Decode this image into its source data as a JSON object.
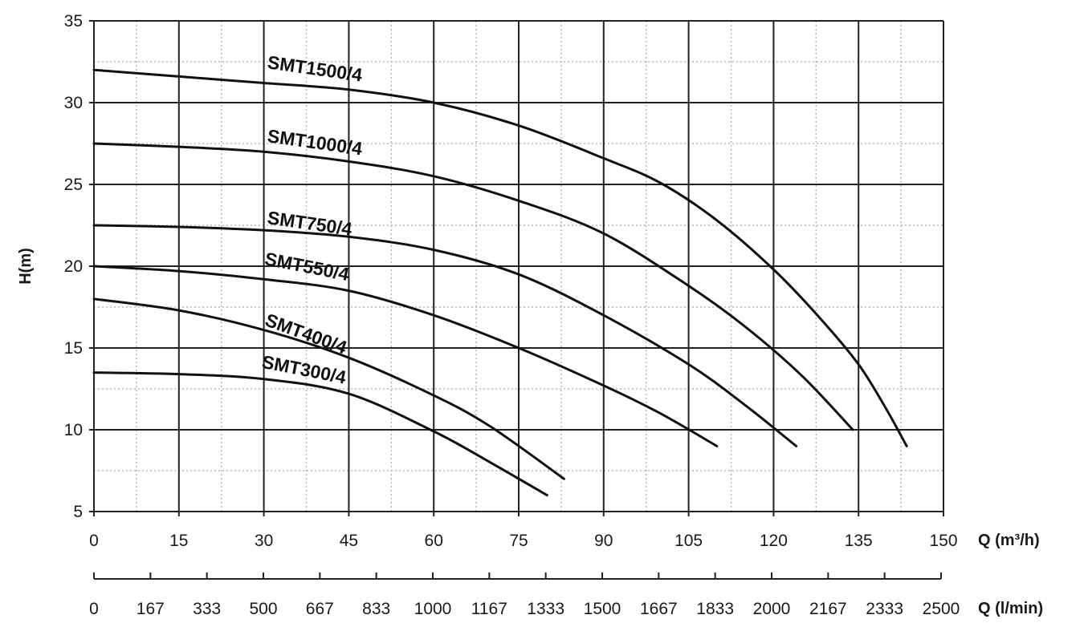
{
  "chart_data": {
    "type": "line",
    "title": "",
    "xlabel": "Q (m³/h)",
    "xlabel_secondary": "Q (l/min)",
    "ylabel": "H(m)",
    "xlim": [
      0,
      150
    ],
    "ylim": [
      5,
      35
    ],
    "x_ticks": [
      "0",
      "15",
      "30",
      "45",
      "60",
      "75",
      "90",
      "105",
      "120",
      "135",
      "150"
    ],
    "x_ticks_secondary": [
      "0",
      "167",
      "333",
      "500",
      "667",
      "833",
      "1000",
      "1167",
      "1333",
      "1500",
      "1667",
      "1833",
      "2000",
      "2167",
      "2333",
      "2500"
    ],
    "y_ticks": [
      "5",
      "10",
      "15",
      "20",
      "25",
      "30",
      "35"
    ],
    "grid": true,
    "series": [
      {
        "name": "SMT1500/4",
        "x": [
          0,
          15,
          30,
          45,
          60,
          75,
          90,
          100,
          110,
          120,
          128,
          135,
          140,
          143.5
        ],
        "y": [
          32,
          31.6,
          31.2,
          30.8,
          30.0,
          28.6,
          26.6,
          25.1,
          22.8,
          19.8,
          16.9,
          14.0,
          11.2,
          9.0
        ]
      },
      {
        "name": "SMT1000/4",
        "x": [
          0,
          15,
          30,
          45,
          60,
          75,
          90,
          105,
          115,
          125,
          134
        ],
        "y": [
          27.5,
          27.3,
          27.0,
          26.4,
          25.5,
          24.0,
          22.0,
          18.8,
          16.3,
          13.3,
          10.0
        ]
      },
      {
        "name": "SMT750/4",
        "x": [
          0,
          15,
          30,
          45,
          60,
          75,
          90,
          105,
          115,
          124
        ],
        "y": [
          22.5,
          22.4,
          22.2,
          21.8,
          21.0,
          19.5,
          17.0,
          14.0,
          11.5,
          9.0
        ]
      },
      {
        "name": "SMT550/4",
        "x": [
          0,
          15,
          30,
          45,
          60,
          75,
          90,
          100,
          110
        ],
        "y": [
          20,
          19.7,
          19.2,
          18.5,
          17.0,
          15.0,
          12.7,
          11.0,
          9.0
        ]
      },
      {
        "name": "SMT400/4",
        "x": [
          0,
          15,
          30,
          45,
          60,
          70,
          83
        ],
        "y": [
          18,
          17.3,
          16.1,
          14.4,
          12.1,
          10.2,
          7.0
        ]
      },
      {
        "name": "SMT300/4",
        "x": [
          0,
          15,
          30,
          45,
          60,
          70,
          80
        ],
        "y": [
          13.5,
          13.4,
          13.1,
          12.2,
          9.9,
          8.0,
          6.0
        ]
      }
    ],
    "labels": [
      {
        "text": "SMT1500/4",
        "x": 30.5,
        "y": 32.1,
        "angle": 8
      },
      {
        "text": "SMT1000/4",
        "x": 30.5,
        "y": 27.6,
        "angle": 8
      },
      {
        "text": "SMT750/4",
        "x": 30.5,
        "y": 22.6,
        "angle": 8
      },
      {
        "text": "SMT550/4",
        "x": 30.0,
        "y": 20.1,
        "angle": 11
      },
      {
        "text": "SMT400/4",
        "x": 30.0,
        "y": 16.4,
        "angle": 20
      },
      {
        "text": "SMT300/4",
        "x": 29.5,
        "y": 13.8,
        "angle": 11
      }
    ]
  }
}
